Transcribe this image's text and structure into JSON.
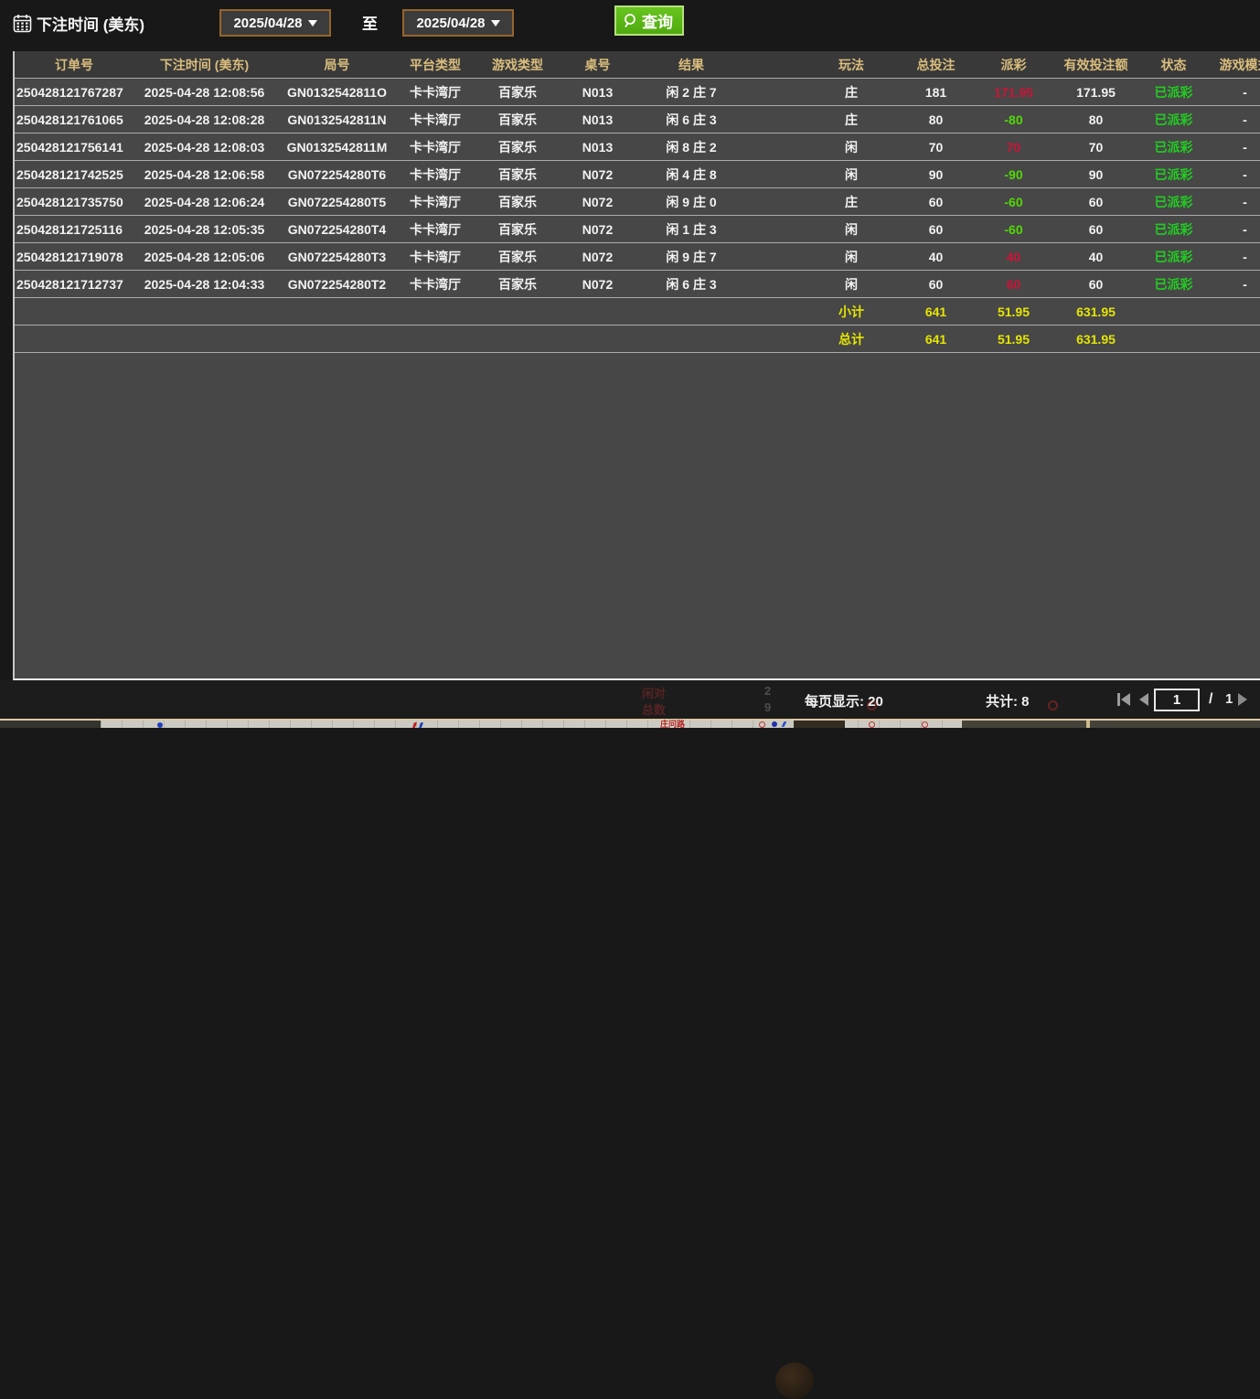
{
  "filter_bar": {
    "title": "下注时间 (美东)",
    "date_from": "2025/04/28",
    "to_label": "至",
    "date_to": "2025/04/28",
    "search_label": "查询"
  },
  "table": {
    "headers": [
      "订单号",
      "下注时间 (美东)",
      "局号",
      "平台类型",
      "游戏类型",
      "桌号",
      "结果",
      "",
      "玩法",
      "总投注",
      "派彩",
      "有效投注额",
      "状态",
      "游戏模式"
    ],
    "rows": [
      {
        "order_id": "250428121767287",
        "bet_time": "2025-04-28 12:08:56",
        "round_id": "GN0132542811O",
        "platform": "卡卡湾厅",
        "game_type": "百家乐",
        "table_no": "N013",
        "result": "闲 2 庄 7",
        "play": "庄",
        "total_bet": "181",
        "payout": "171.95",
        "payout_color": "red",
        "valid_bet": "171.95",
        "status": "已派彩",
        "game_mode": "-"
      },
      {
        "order_id": "250428121761065",
        "bet_time": "2025-04-28 12:08:28",
        "round_id": "GN0132542811N",
        "platform": "卡卡湾厅",
        "game_type": "百家乐",
        "table_no": "N013",
        "result": "闲 6 庄 3",
        "play": "庄",
        "total_bet": "80",
        "payout": "-80",
        "payout_color": "green",
        "valid_bet": "80",
        "status": "已派彩",
        "game_mode": "-"
      },
      {
        "order_id": "250428121756141",
        "bet_time": "2025-04-28 12:08:03",
        "round_id": "GN0132542811M",
        "platform": "卡卡湾厅",
        "game_type": "百家乐",
        "table_no": "N013",
        "result": "闲 8 庄 2",
        "play": "闲",
        "total_bet": "70",
        "payout": "70",
        "payout_color": "red",
        "valid_bet": "70",
        "status": "已派彩",
        "game_mode": "-"
      },
      {
        "order_id": "250428121742525",
        "bet_time": "2025-04-28 12:06:58",
        "round_id": "GN072254280T6",
        "platform": "卡卡湾厅",
        "game_type": "百家乐",
        "table_no": "N072",
        "result": "闲 4 庄 8",
        "play": "闲",
        "total_bet": "90",
        "payout": "-90",
        "payout_color": "green",
        "valid_bet": "90",
        "status": "已派彩",
        "game_mode": "-"
      },
      {
        "order_id": "250428121735750",
        "bet_time": "2025-04-28 12:06:24",
        "round_id": "GN072254280T5",
        "platform": "卡卡湾厅",
        "game_type": "百家乐",
        "table_no": "N072",
        "result": "闲 9 庄 0",
        "play": "庄",
        "total_bet": "60",
        "payout": "-60",
        "payout_color": "green",
        "valid_bet": "60",
        "status": "已派彩",
        "game_mode": "-"
      },
      {
        "order_id": "250428121725116",
        "bet_time": "2025-04-28 12:05:35",
        "round_id": "GN072254280T4",
        "platform": "卡卡湾厅",
        "game_type": "百家乐",
        "table_no": "N072",
        "result": "闲 1 庄 3",
        "play": "闲",
        "total_bet": "60",
        "payout": "-60",
        "payout_color": "green",
        "valid_bet": "60",
        "status": "已派彩",
        "game_mode": "-"
      },
      {
        "order_id": "250428121719078",
        "bet_time": "2025-04-28 12:05:06",
        "round_id": "GN072254280T3",
        "platform": "卡卡湾厅",
        "game_type": "百家乐",
        "table_no": "N072",
        "result": "闲 9 庄 7",
        "play": "闲",
        "total_bet": "40",
        "payout": "40",
        "payout_color": "red",
        "valid_bet": "40",
        "status": "已派彩",
        "game_mode": "-"
      },
      {
        "order_id": "250428121712737",
        "bet_time": "2025-04-28 12:04:33",
        "round_id": "GN072254280T2",
        "platform": "卡卡湾厅",
        "game_type": "百家乐",
        "table_no": "N072",
        "result": "闲 6 庄 3",
        "play": "闲",
        "total_bet": "60",
        "payout": "60",
        "payout_color": "red",
        "valid_bet": "60",
        "status": "已派彩",
        "game_mode": "-"
      }
    ],
    "subtotal": {
      "label": "小计",
      "total_bet": "641",
      "payout": "51.95",
      "valid_bet": "631.95"
    },
    "total": {
      "label": "总计",
      "total_bet": "641",
      "payout": "51.95",
      "valid_bet": "631.95"
    }
  },
  "pagination": {
    "per_page_label": "每页显示: 20",
    "total_label": "共计: 8",
    "current_page": "1",
    "separator": "/",
    "total_pages": "1"
  },
  "background_bleed": {
    "pair_label": "闲对",
    "count_label": "总数",
    "pair_value": "2",
    "count_value": "9",
    "road_label": "庄问路"
  },
  "colors": {
    "accent_gold": "#d9bd7d",
    "payout_win_red": "#cf1237",
    "payout_lose_green": "#52d706",
    "total_yellow": "#e5e500",
    "status_green": "#22cc22",
    "button_green": "#5ab617",
    "date_border_brown": "#96652c"
  }
}
